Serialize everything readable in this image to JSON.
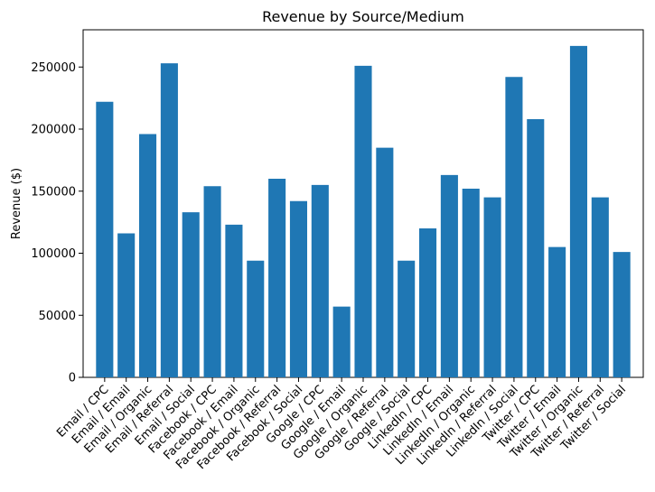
{
  "chart_data": {
    "type": "bar",
    "title": "Revenue by Source/Medium",
    "xlabel": "",
    "ylabel": "Revenue ($)",
    "ylim": [
      0,
      280000
    ],
    "yticks": [
      0,
      50000,
      100000,
      150000,
      200000,
      250000
    ],
    "ytick_labels": [
      "0",
      "50000",
      "100000",
      "150000",
      "200000",
      "250000"
    ],
    "grid": false,
    "bar_color": "#1f77b4",
    "categories": [
      "Email / CPC",
      "Email / Email",
      "Email / Organic",
      "Email / Referral",
      "Email / Social",
      "Facebook / CPC",
      "Facebook / Email",
      "Facebook / Organic",
      "Facebook / Referral",
      "Facebook / Social",
      "Google / CPC",
      "Google / Email",
      "Google / Organic",
      "Google / Referral",
      "Google / Social",
      "LinkedIn / CPC",
      "LinkedIn / Email",
      "LinkedIn / Organic",
      "LinkedIn / Referral",
      "LinkedIn / Social",
      "Twitter / CPC",
      "Twitter / Email",
      "Twitter / Organic",
      "Twitter / Referral",
      "Twitter / Social"
    ],
    "values": [
      222000,
      116000,
      196000,
      253000,
      133000,
      154000,
      123000,
      94000,
      160000,
      142000,
      155000,
      57000,
      251000,
      185000,
      94000,
      120000,
      163000,
      152000,
      145000,
      242000,
      208000,
      105000,
      267000,
      145000,
      101000
    ]
  }
}
